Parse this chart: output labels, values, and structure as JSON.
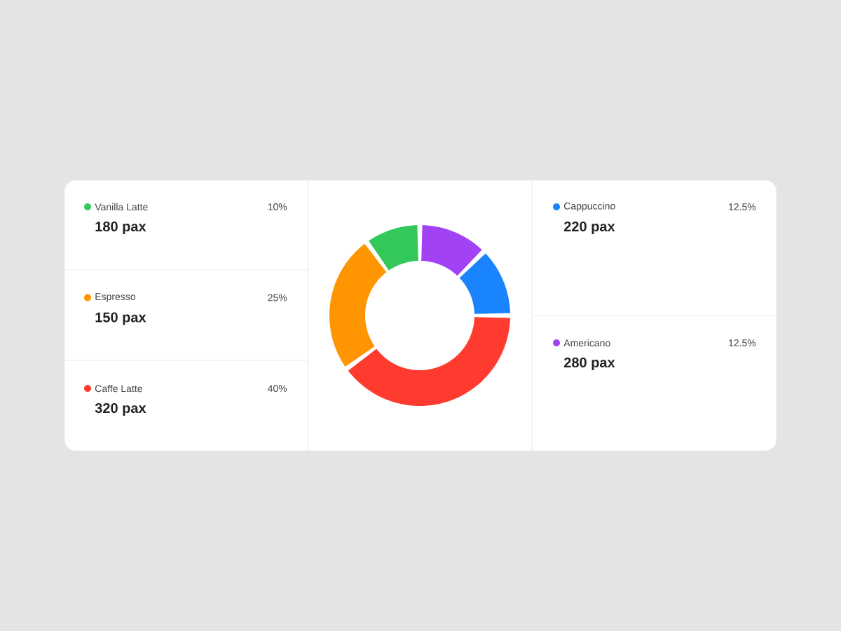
{
  "chart_data": {
    "type": "donut",
    "categories": [
      "Americano",
      "Cappuccino",
      "Caffe Latte",
      "Espresso",
      "Vanilla Latte"
    ],
    "values": [
      12.5,
      12.5,
      40,
      25,
      10
    ],
    "colors": [
      "#a142f4",
      "#1a84ff",
      "#ff3b30",
      "#ff9500",
      "#34c759"
    ],
    "legend": "left",
    "value_labels": [
      "12.5%",
      "12.5%",
      "40%",
      "25%",
      "10%"
    ],
    "annotations": [
      "280 pax",
      "220 pax",
      "320 pax",
      "150 pax",
      "180 pax"
    ]
  }
}
